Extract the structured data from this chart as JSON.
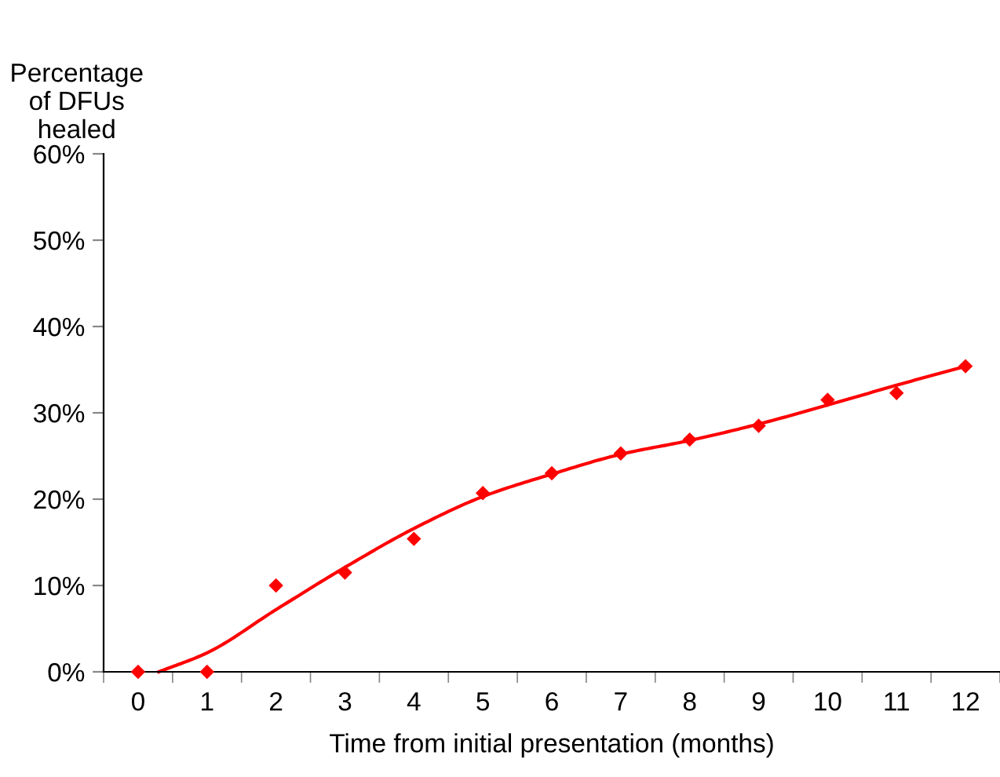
{
  "chart_data": {
    "type": "scatter",
    "ylabel": "Percentage\nof DFUs\nhealed",
    "xlabel": "Time from initial presentation (months)",
    "x": [
      0,
      1,
      2,
      3,
      4,
      5,
      6,
      7,
      8,
      9,
      10,
      11,
      12
    ],
    "series": [
      {
        "color": "#ff0000",
        "marker": "diamond",
        "values": [
          0,
          0,
          10,
          11.5,
          15.4,
          20.7,
          23.0,
          25.3,
          26.9,
          28.5,
          31.5,
          32.3,
          35.4
        ]
      },
      {
        "type": "line",
        "color": "#ff0000",
        "marker": "none",
        "x": [
          0.3,
          1,
          2,
          3,
          4,
          5,
          6,
          7,
          8,
          9,
          10,
          11,
          12
        ],
        "values": [
          0,
          2.2,
          7.2,
          12.1,
          16.6,
          20.3,
          22.9,
          25.2,
          26.8,
          28.7,
          30.9,
          33.2,
          35.4
        ]
      }
    ],
    "xlim": [
      -0.5,
      12.5
    ],
    "ylim": [
      0,
      60
    ],
    "xticks": [
      {
        "value": -0.5,
        "label": null
      },
      0,
      {
        "value": 0.5,
        "label": null
      },
      1,
      {
        "value": 1.5,
        "label": null
      },
      2,
      {
        "value": 2.5,
        "label": null
      },
      3,
      {
        "value": 3.5,
        "label": null
      },
      4,
      {
        "value": 4.5,
        "label": null
      },
      5,
      {
        "value": 5.5,
        "label": null
      },
      6,
      {
        "value": 6.5,
        "label": null
      },
      7,
      {
        "value": 7.5,
        "label": null
      },
      8,
      {
        "value": 8.5,
        "label": null
      },
      9,
      {
        "value": 9.5,
        "label": null
      },
      10,
      {
        "value": 10.5,
        "label": null
      },
      11,
      {
        "value": 11.5,
        "label": null
      },
      12,
      {
        "value": 12.5,
        "label": null
      }
    ],
    "yticks": [
      {
        "value": 0,
        "label": "0%"
      },
      {
        "value": 10,
        "label": "10%"
      },
      {
        "value": 20,
        "label": "20%"
      },
      {
        "value": 30,
        "label": "30%"
      },
      {
        "value": 40,
        "label": "40%"
      },
      {
        "value": 50,
        "label": "50%"
      },
      {
        "value": 60,
        "label": "60%"
      }
    ],
    "grid": false,
    "legend": false
  }
}
